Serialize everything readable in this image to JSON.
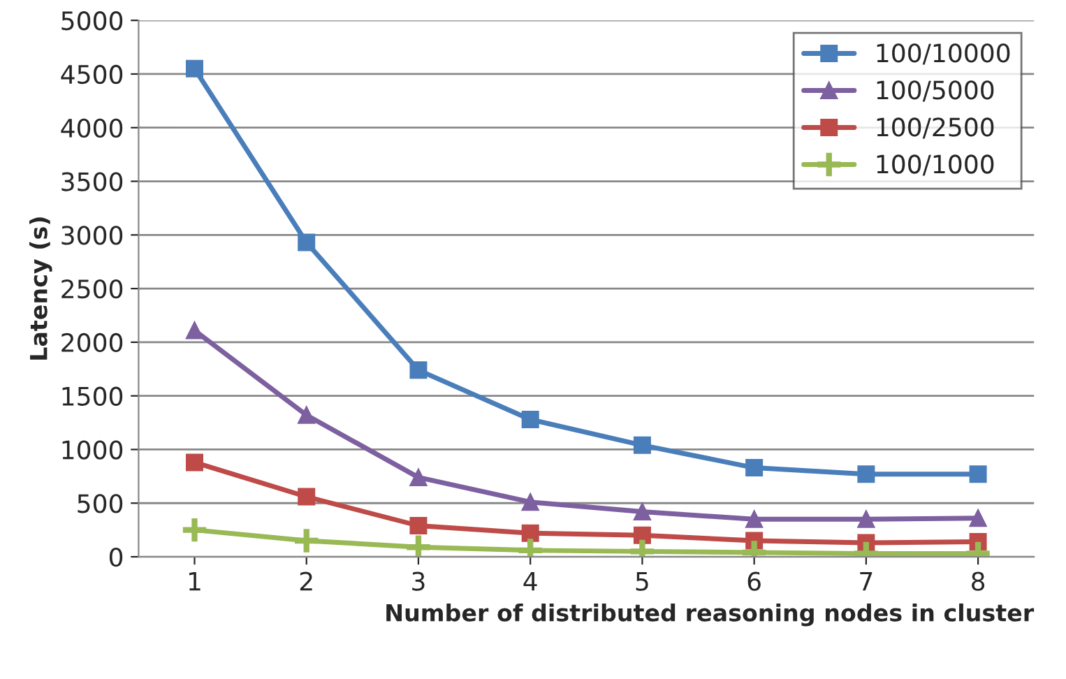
{
  "chart_data": {
    "type": "line",
    "xlabel": "Number of distributed reasoning nodes in cluster",
    "ylabel": "Latency (s)",
    "categories": [
      "1",
      "2",
      "3",
      "4",
      "5",
      "6",
      "7",
      "8"
    ],
    "series": [
      {
        "name": "100/10000",
        "color": "#4a7ebb",
        "marker": "square",
        "values": [
          4550,
          2930,
          1740,
          1280,
          1040,
          830,
          770,
          770
        ]
      },
      {
        "name": "100/5000",
        "color": "#7d60a0",
        "marker": "triangle",
        "values": [
          2110,
          1320,
          740,
          510,
          420,
          350,
          350,
          360
        ]
      },
      {
        "name": "100/2500",
        "color": "#be4b48",
        "marker": "square",
        "values": [
          880,
          560,
          290,
          220,
          200,
          150,
          130,
          140
        ]
      },
      {
        "name": "100/1000",
        "color": "#98b954",
        "marker": "cross",
        "values": [
          250,
          150,
          90,
          60,
          50,
          40,
          30,
          30
        ]
      }
    ],
    "ylim": [
      0,
      5000
    ],
    "yticks": [
      0,
      500,
      1000,
      1500,
      2000,
      2500,
      3000,
      3500,
      4000,
      4500,
      5000
    ],
    "grid": "y",
    "legend": "top right",
    "line_style": "solid"
  }
}
